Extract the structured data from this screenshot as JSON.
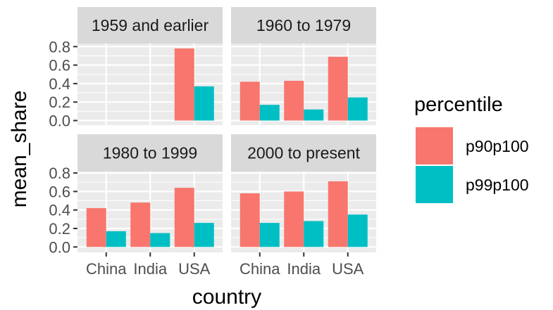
{
  "chart_data": {
    "type": "bar",
    "facet_by": "period",
    "xlabel": "country",
    "ylabel": "mean_share",
    "ylim": [
      0,
      0.85
    ],
    "yticks": [
      0.0,
      0.2,
      0.4,
      0.6,
      0.8
    ],
    "ytick_labels": [
      "0.0",
      "0.2",
      "0.4",
      "0.6",
      "0.8"
    ],
    "categories": [
      "China",
      "India",
      "USA"
    ],
    "legend": {
      "title": "percentile",
      "position": "right",
      "entries": [
        {
          "name": "p90p100",
          "color": "#F8766D"
        },
        {
          "name": "p99p100",
          "color": "#00BFC4"
        }
      ]
    },
    "panels": [
      {
        "label": "1959 and earlier",
        "series": [
          {
            "name": "p90p100",
            "values": [
              null,
              null,
              0.78
            ]
          },
          {
            "name": "p99p100",
            "values": [
              null,
              null,
              0.37
            ]
          }
        ]
      },
      {
        "label": "1960 to 1979",
        "series": [
          {
            "name": "p90p100",
            "values": [
              0.42,
              0.43,
              0.69
            ]
          },
          {
            "name": "p99p100",
            "values": [
              0.17,
              0.12,
              0.25
            ]
          }
        ]
      },
      {
        "label": "1980 to 1999",
        "series": [
          {
            "name": "p90p100",
            "values": [
              0.42,
              0.48,
              0.64
            ]
          },
          {
            "name": "p99p100",
            "values": [
              0.17,
              0.15,
              0.26
            ]
          }
        ]
      },
      {
        "label": "2000 to present",
        "series": [
          {
            "name": "p90p100",
            "values": [
              0.58,
              0.6,
              0.71
            ]
          },
          {
            "name": "p99p100",
            "values": [
              0.26,
              0.28,
              0.35
            ]
          }
        ]
      }
    ],
    "grid": true
  }
}
